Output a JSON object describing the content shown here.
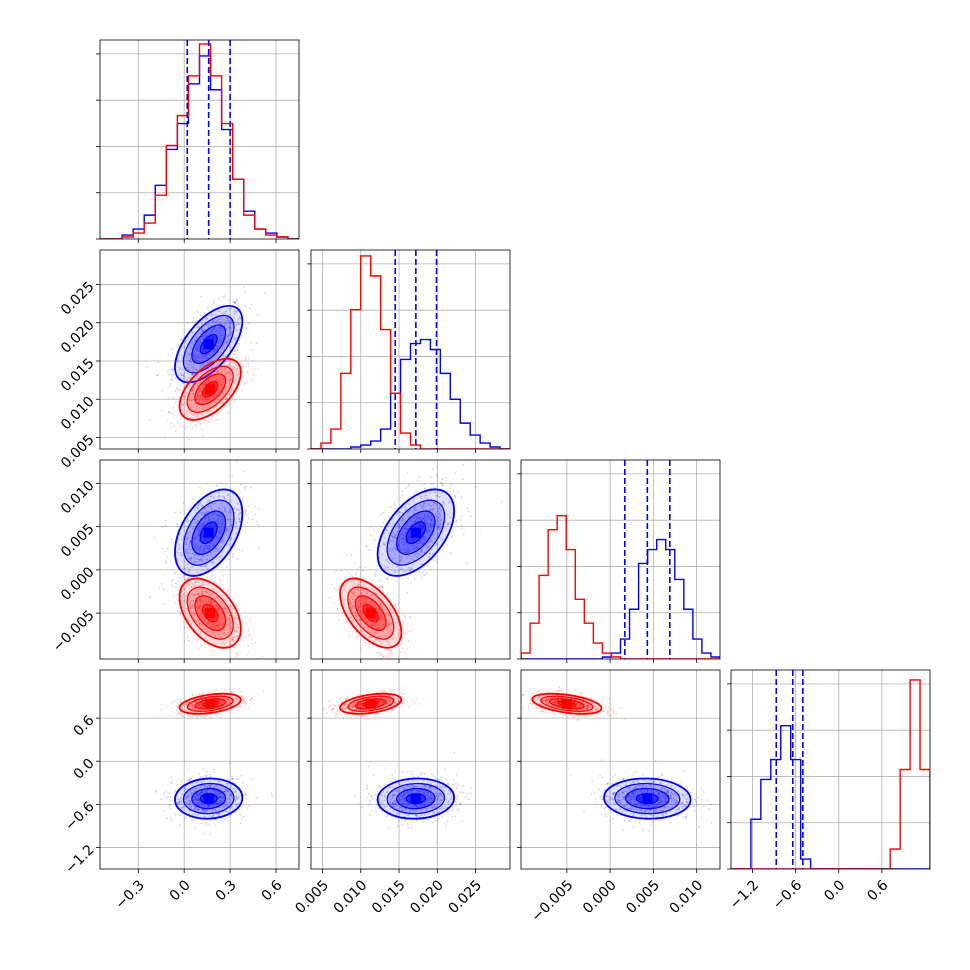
{
  "chart_data": {
    "type": "corner",
    "grid": true,
    "colors": {
      "series_a": "#0000ff",
      "series_b": "#ff0000",
      "grid": "#b0b0b0",
      "axes": "#000000"
    },
    "dims": [
      {
        "range": [
          -0.55,
          0.75
        ],
        "ticks": [
          -0.3,
          0.0,
          0.3,
          0.6
        ],
        "tick_labels": [
          "−0.3",
          "0.0",
          "0.3",
          "0.6"
        ]
      },
      {
        "range": [
          0.0035,
          0.0295
        ],
        "ticks": [
          0.005,
          0.01,
          0.015,
          0.02,
          0.025
        ],
        "tick_labels": [
          "0.005",
          "0.010",
          "0.015",
          "0.020",
          "0.025"
        ]
      },
      {
        "range": [
          -0.0103,
          0.0127
        ],
        "ticks": [
          -0.005,
          0.0,
          0.005,
          0.01
        ],
        "tick_labels": [
          "−0.005",
          "0.000",
          "0.005",
          "0.010"
        ]
      },
      {
        "range": [
          -1.5,
          1.27
        ],
        "ticks": [
          -1.2,
          -0.6,
          0.0,
          0.6
        ],
        "tick_labels": [
          "−1.2",
          "−0.6",
          "0.0",
          "0.6"
        ]
      }
    ],
    "series": [
      {
        "color": "#0000ff",
        "mean": [
          0.16,
          0.0172,
          0.0043,
          -0.52
        ],
        "sd": [
          0.11,
          0.0025,
          0.0025,
          0.14
        ],
        "corr": [
          [
            0,
            1,
            0.6
          ],
          [
            0,
            2,
            0.45
          ],
          [
            1,
            2,
            0.5
          ],
          [
            2,
            3,
            -0.05
          ],
          [
            0,
            3,
            0.05
          ],
          [
            1,
            3,
            0.05
          ]
        ],
        "quantiles": [
          [
            0.02,
            0.16,
            0.3
          ],
          [
            0.0145,
            0.0172,
            0.0199
          ],
          [
            0.0017,
            0.0043,
            0.0069
          ],
          [
            -0.87,
            -0.64,
            -0.5
          ]
        ],
        "hist": [
          [
            0.0,
            0.0,
            0.02,
            0.05,
            0.12,
            0.27,
            0.45,
            0.58,
            0.78,
            0.92,
            0.75,
            0.55,
            0.3,
            0.14,
            0.05,
            0.03,
            0.01,
            0.0
          ],
          [
            0.0,
            0.0,
            0.0,
            0.0,
            0.01,
            0.02,
            0.04,
            0.1,
            0.28,
            0.45,
            0.53,
            0.55,
            0.5,
            0.38,
            0.25,
            0.13,
            0.07,
            0.03,
            0.01,
            0.0
          ],
          [
            0.0,
            0.0,
            0.0,
            0.0,
            0.0,
            0.0,
            0.0,
            0.0,
            0.0,
            0.01,
            0.03,
            0.1,
            0.25,
            0.48,
            0.55,
            0.6,
            0.55,
            0.4,
            0.25,
            0.1,
            0.03,
            0.01
          ],
          [
            0.0,
            0.0,
            0.25,
            0.45,
            0.55,
            0.72,
            0.55,
            0.05,
            0.0,
            0.0,
            0.0,
            0.0,
            0.0,
            0.0,
            0.0,
            0.0,
            0.0,
            0.0,
            0.0,
            0.0
          ]
        ]
      },
      {
        "color": "#ff0000",
        "mean": [
          0.17,
          0.0113,
          -0.005,
          0.8
        ],
        "sd": [
          0.1,
          0.002,
          0.002,
          0.07
        ],
        "corr": [
          [
            0,
            1,
            0.55
          ],
          [
            0,
            2,
            -0.45
          ],
          [
            1,
            2,
            -0.55
          ],
          [
            2,
            3,
            -0.45
          ],
          [
            0,
            3,
            0.4
          ],
          [
            1,
            3,
            0.4
          ]
        ],
        "hist": [
          [
            0.0,
            0.0,
            0.01,
            0.03,
            0.08,
            0.22,
            0.47,
            0.62,
            0.82,
            0.98,
            0.82,
            0.58,
            0.3,
            0.12,
            0.05,
            0.02,
            0.01,
            0.0
          ],
          [
            0.0,
            0.03,
            0.1,
            0.38,
            0.7,
            0.97,
            0.87,
            0.6,
            0.28,
            0.08,
            0.02,
            0.0,
            0.0,
            0.0,
            0.0,
            0.0,
            0.0,
            0.0,
            0.0,
            0.0
          ],
          [
            0.03,
            0.18,
            0.42,
            0.65,
            0.72,
            0.55,
            0.3,
            0.18,
            0.08,
            0.03,
            0.01,
            0.0,
            0.0,
            0.0,
            0.0,
            0.0,
            0.0,
            0.0,
            0.0,
            0.0,
            0.0,
            0.0
          ],
          [
            0.0,
            0.0,
            0.0,
            0.0,
            0.0,
            0.0,
            0.0,
            0.0,
            0.0,
            0.0,
            0.0,
            0.0,
            0.0,
            0.0,
            0.0,
            0.0,
            0.1,
            0.5,
            0.95,
            0.5
          ]
        ]
      }
    ],
    "contour_levels_sigma": [
      0.5,
      1.0,
      1.5,
      2.0
    ]
  }
}
